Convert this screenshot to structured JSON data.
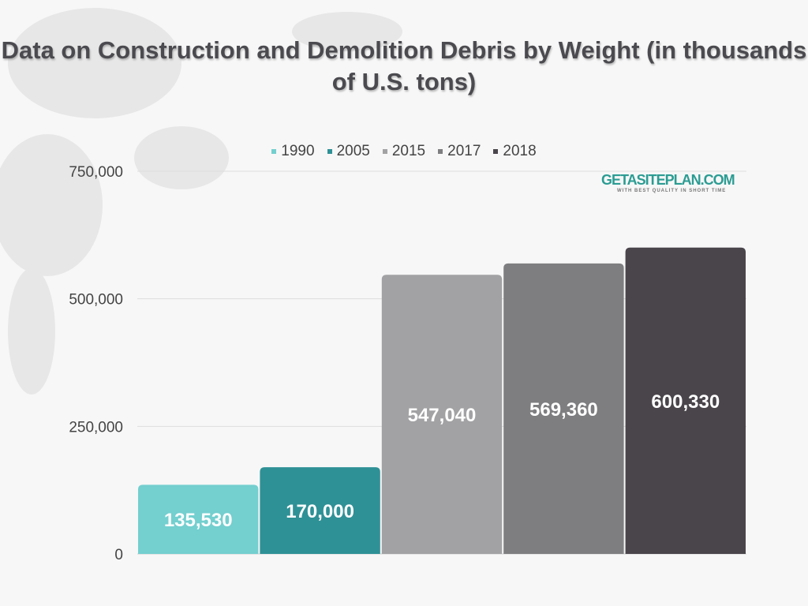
{
  "chart_data": {
    "type": "bar",
    "title": "Data on Construction and Demolition Debris by Weight (in thousands of U.S. tons)",
    "categories": [
      "1990",
      "2005",
      "2015",
      "2017",
      "2018"
    ],
    "values": [
      135530,
      170000,
      547040,
      569360,
      600330
    ],
    "value_labels": [
      "135,530",
      "170,000",
      "547,040",
      "569,360",
      "600,330"
    ],
    "colors": [
      "#74cfcf",
      "#2e9196",
      "#a2a2a4",
      "#7e7e81",
      "#4a454b"
    ],
    "ylim": [
      0,
      750000
    ],
    "yticks": [
      0,
      250000,
      500000,
      750000
    ],
    "ytick_labels": [
      "0",
      "250,000",
      "500,000",
      "750,000"
    ],
    "grid": true,
    "legend": "top",
    "xlabel": "",
    "ylabel": ""
  },
  "logo": {
    "text": "GETASITEPLAN.COM",
    "tagline": "WITH BEST QUALITY IN SHORT TIME"
  }
}
